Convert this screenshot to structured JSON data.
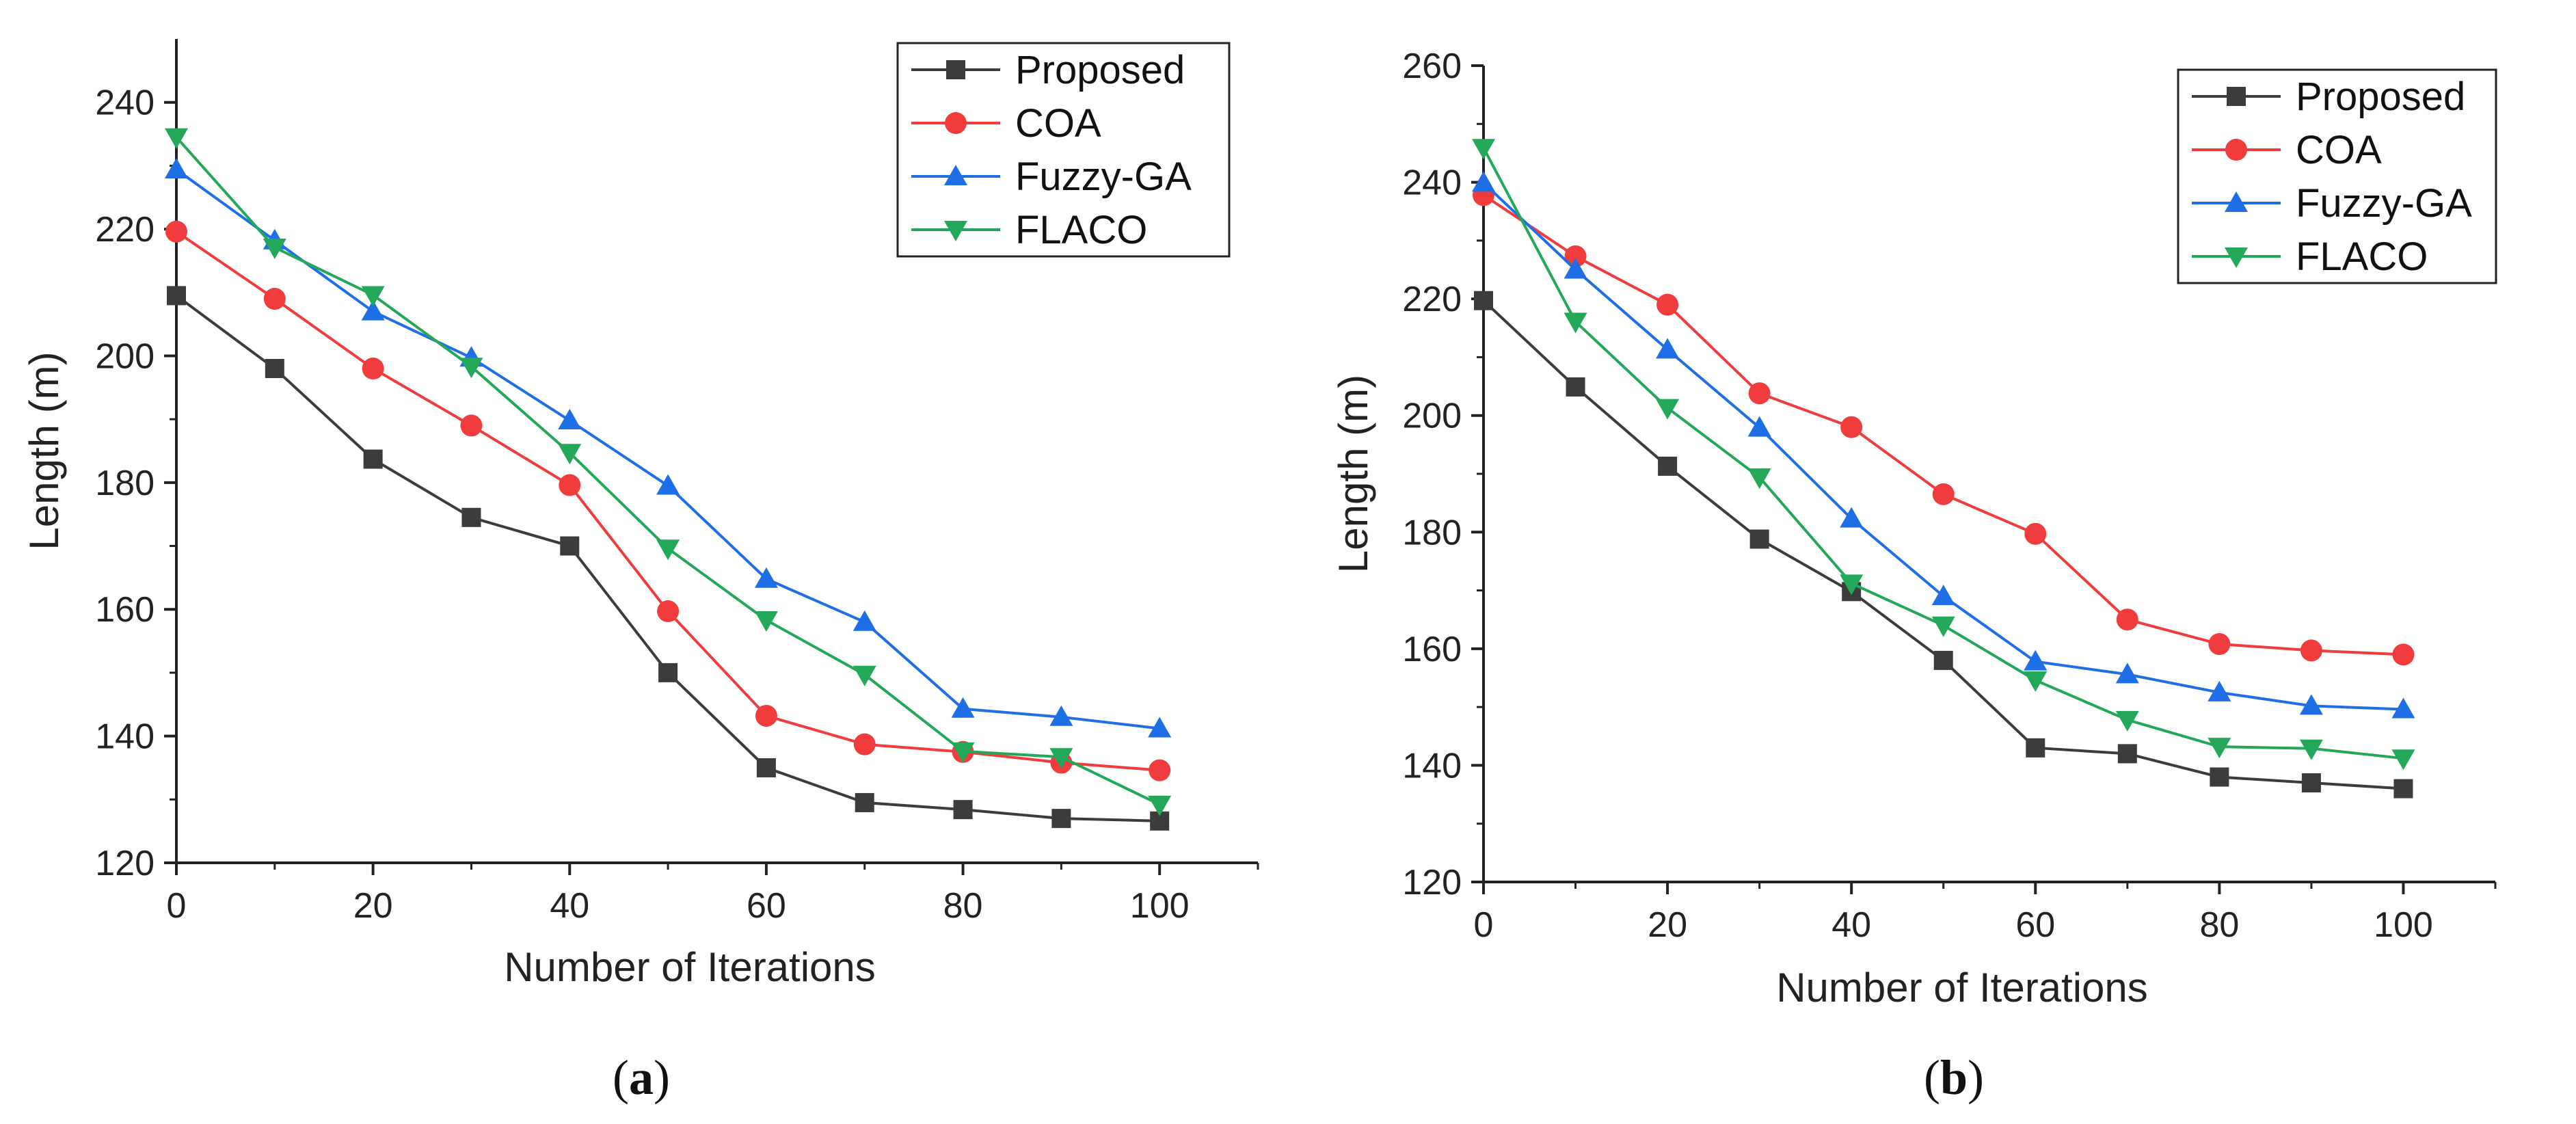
{
  "chart_data": [
    {
      "type": "line",
      "panel_label": "a",
      "xlabel": "Number of Iterations",
      "ylabel": "Length (m)",
      "xlim": [
        0,
        110
      ],
      "ylim": [
        120,
        250
      ],
      "xticks": [
        "0",
        "20",
        "40",
        "60",
        "80",
        "100"
      ],
      "yticks": [
        "120",
        "140",
        "160",
        "180",
        "200",
        "220",
        "240"
      ],
      "legend_position": "top-right",
      "x": [
        0,
        10,
        20,
        30,
        40,
        50,
        60,
        70,
        80,
        90,
        100
      ],
      "series": [
        {
          "name": "Proposed",
          "color": "#3c3c3c",
          "marker": "square",
          "values": [
            209.5,
            198,
            183.7,
            174.5,
            170,
            150,
            135,
            129.5,
            128.4,
            127,
            126.6
          ]
        },
        {
          "name": "COA",
          "color": "#f03c3c",
          "marker": "circle",
          "values": [
            219.6,
            209,
            198,
            189,
            179.6,
            159.7,
            143.2,
            138.7,
            137.5,
            135.8,
            134.6
          ]
        },
        {
          "name": "Fuzzy-GA",
          "color": "#1e6fe6",
          "marker": "triangle-up",
          "values": [
            229.4,
            218.2,
            207,
            199.7,
            189.8,
            179.5,
            164.8,
            158,
            144.3,
            143,
            141.2
          ]
        },
        {
          "name": "FLACO",
          "color": "#23a85a",
          "marker": "triangle-down",
          "values": [
            234.5,
            217.1,
            209.6,
            198.3,
            184.7,
            169.6,
            158.3,
            149.7,
            137.6,
            136.7,
            129.2
          ]
        }
      ]
    },
    {
      "type": "line",
      "panel_label": "b",
      "xlabel": "Number of Iterations",
      "ylabel": "Length (m)",
      "xlim": [
        0,
        110
      ],
      "ylim": [
        120,
        260
      ],
      "xticks": [
        "0",
        "20",
        "40",
        "60",
        "80",
        "100"
      ],
      "yticks": [
        "120",
        "140",
        "160",
        "180",
        "200",
        "220",
        "240",
        "260"
      ],
      "legend_position": "top-right",
      "x": [
        0,
        10,
        20,
        30,
        40,
        50,
        60,
        70,
        80,
        90,
        100
      ],
      "series": [
        {
          "name": "Proposed",
          "color": "#3c3c3c",
          "marker": "square",
          "values": [
            219.7,
            204.9,
            191.3,
            178.8,
            169.8,
            158,
            143,
            142,
            138,
            137,
            136
          ]
        },
        {
          "name": "COA",
          "color": "#f03c3c",
          "marker": "circle",
          "values": [
            237.8,
            227.3,
            219,
            203.8,
            198,
            186.5,
            179.7,
            165,
            160.8,
            159.7,
            159
          ]
        },
        {
          "name": "Fuzzy-GA",
          "color": "#1e6fe6",
          "marker": "triangle-up",
          "values": [
            239.9,
            225,
            211.3,
            197.9,
            182.3,
            169,
            157.8,
            155.6,
            152.5,
            150.2,
            149.6
          ]
        },
        {
          "name": "FLACO",
          "color": "#23a85a",
          "marker": "triangle-down",
          "values": [
            245.9,
            216.1,
            201.3,
            189.4,
            171.2,
            164,
            154.6,
            147.8,
            143.2,
            142.9,
            141.2
          ]
        }
      ]
    }
  ]
}
